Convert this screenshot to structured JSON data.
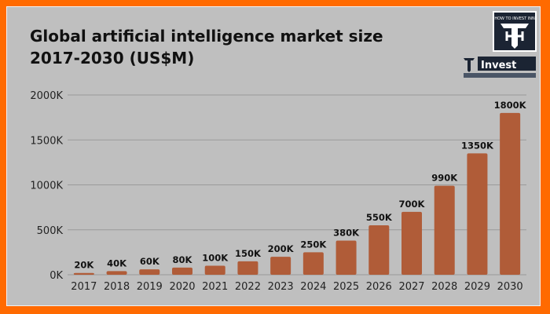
{
  "chart_data": {
    "type": "bar",
    "title": "Global artificial intelligence market size 2017-2030 (US$M)",
    "categories": [
      "2017",
      "2018",
      "2019",
      "2020",
      "2021",
      "2022",
      "2023",
      "2024",
      "2025",
      "2026",
      "2027",
      "2028",
      "2029",
      "2030"
    ],
    "values": [
      20,
      40,
      60,
      80,
      100,
      150,
      200,
      250,
      380,
      550,
      700,
      990,
      1350,
      1800
    ],
    "data_labels": [
      "20K",
      "40K",
      "60K",
      "80K",
      "100K",
      "150K",
      "200K",
      "250K",
      "380K",
      "550K",
      "700K",
      "990K",
      "1350K",
      "1800K"
    ],
    "yticks": [
      0,
      500,
      1000,
      1500,
      2000
    ],
    "ytick_labels": [
      "0K",
      "500K",
      "1000K",
      "1500K",
      "2000K"
    ],
    "ylim": [
      0,
      2000
    ],
    "grid": true,
    "xlabel": "",
    "ylabel": "",
    "bar_color": "#b05c38"
  },
  "logo": {
    "text_top": "HOW TO INVEST INN",
    "text_main": "Invest",
    "text_url": "HOWTOINVESTINN.COM"
  },
  "colors": {
    "border": "#ff6a00",
    "background": "#bfbfbf"
  }
}
